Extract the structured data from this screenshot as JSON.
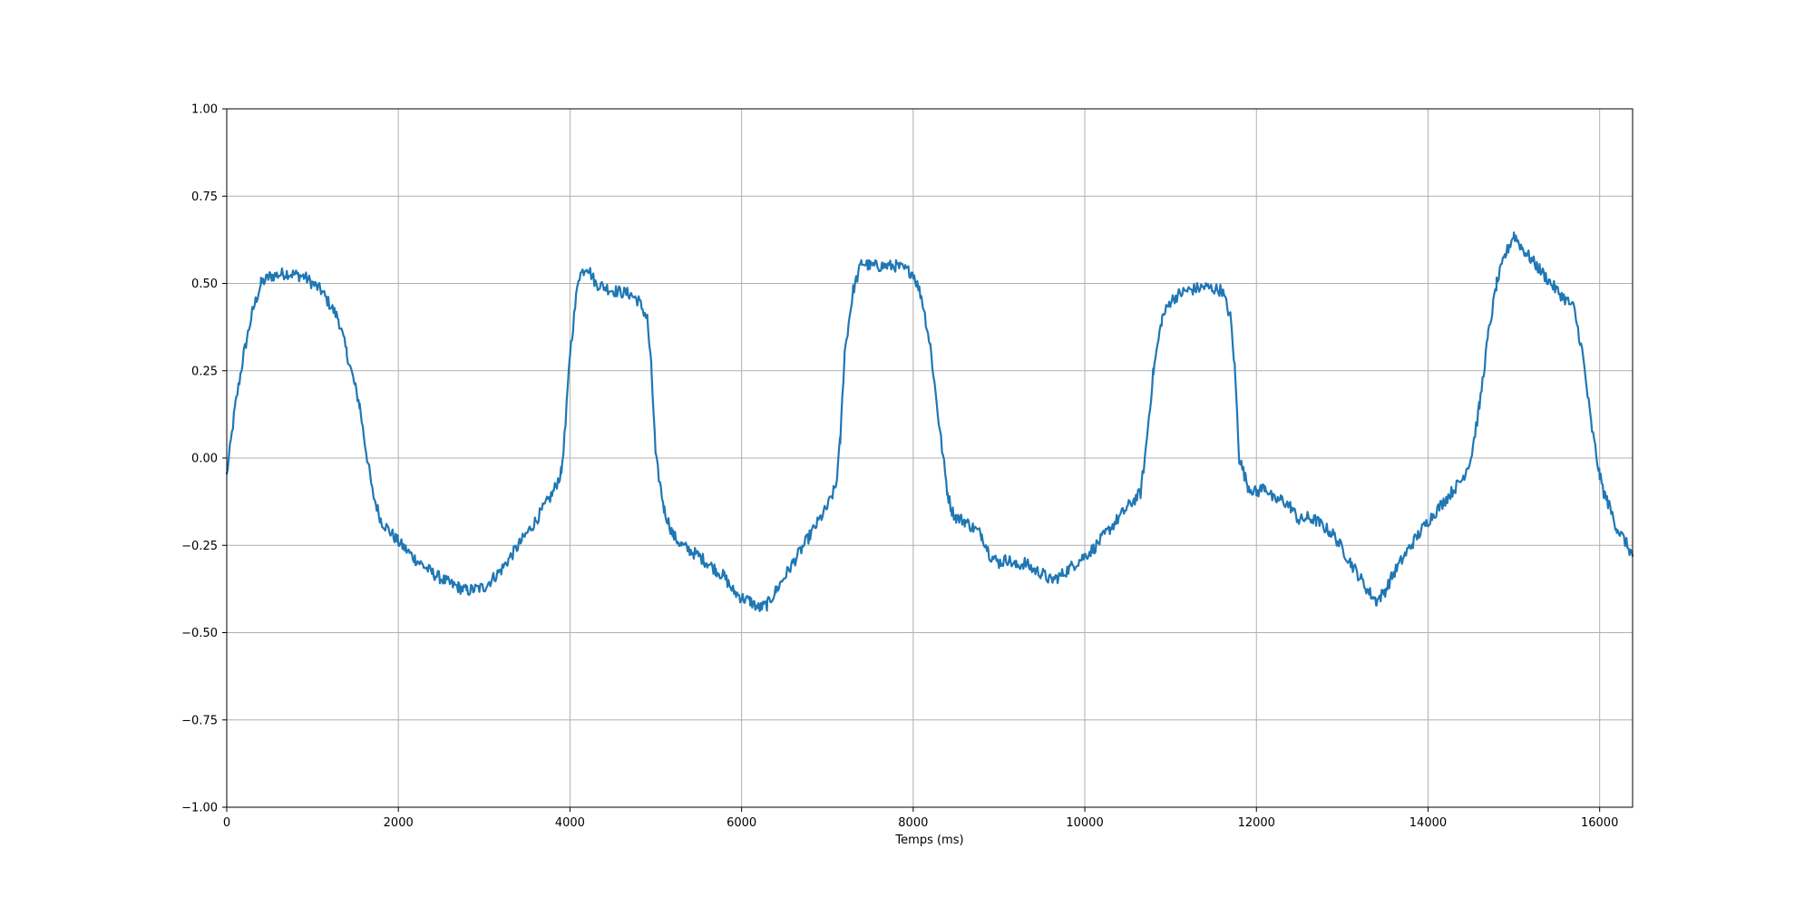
{
  "chart_data": {
    "type": "line",
    "title": "",
    "xlabel": "Temps (ms)",
    "ylabel": "",
    "xlim": [
      0,
      16384
    ],
    "ylim": [
      -1.0,
      1.0
    ],
    "grid": true,
    "legend": "none",
    "xticks": [
      0,
      2000,
      4000,
      6000,
      8000,
      10000,
      12000,
      14000,
      16000
    ],
    "xtick_labels": [
      "0",
      "2000",
      "4000",
      "6000",
      "8000",
      "10000",
      "12000",
      "14000",
      "16000"
    ],
    "yticks": [
      -1.0,
      -0.75,
      -0.5,
      -0.25,
      0.0,
      0.25,
      0.5,
      0.75,
      1.0
    ],
    "ytick_labels": [
      "−1.00",
      "−0.75",
      "−0.50",
      "−0.25",
      "0.00",
      "0.25",
      "0.50",
      "0.75",
      "1.00"
    ],
    "colors": {
      "line": "#1f77b4",
      "grid": "#b0b0b0",
      "axes": "#000000"
    },
    "series": [
      {
        "x": [
          0,
          100,
          200,
          300,
          400,
          500,
          700,
          900,
          1100,
          1300,
          1400,
          1500,
          1550,
          1600,
          1700,
          1800,
          2000,
          2200,
          2400,
          2600,
          2700,
          2800,
          3000,
          3200,
          3400,
          3600,
          3800,
          3900,
          3950,
          4000,
          4100,
          4200,
          4300,
          4500,
          4700,
          4800,
          4900,
          4950,
          5000,
          5100,
          5200,
          5300,
          5500,
          5600,
          5700,
          5800,
          5900,
          6000,
          6100,
          6200,
          6300,
          6400,
          6600,
          6800,
          7000,
          7100,
          7150,
          7200,
          7300,
          7400,
          7500,
          7600,
          7800,
          8000,
          8100,
          8200,
          8300,
          8400,
          8450,
          8500,
          8600,
          8700,
          8800,
          8900,
          9000,
          9100,
          9200,
          9300,
          9400,
          9500,
          9600,
          9700,
          9900,
          10100,
          10300,
          10500,
          10650,
          10700,
          10800,
          10900,
          11000,
          11100,
          11200,
          11400,
          11600,
          11700,
          11750,
          11800,
          11900,
          12000,
          12100,
          12200,
          12300,
          12400,
          12500,
          12600,
          12700,
          12900,
          13100,
          13300,
          13400,
          13500,
          13600,
          13800,
          14000,
          14200,
          14400,
          14500,
          14600,
          14700,
          14800,
          14900,
          15000,
          15100,
          15300,
          15500,
          15700,
          15800,
          15900,
          16000,
          16050,
          16100,
          16200,
          16300,
          16384
        ],
        "y": [
          -0.05,
          0.15,
          0.3,
          0.42,
          0.5,
          0.52,
          0.53,
          0.52,
          0.48,
          0.4,
          0.3,
          0.2,
          0.15,
          0.06,
          -0.1,
          -0.18,
          -0.24,
          -0.29,
          -0.33,
          -0.36,
          -0.37,
          -0.38,
          -0.37,
          -0.32,
          -0.25,
          -0.18,
          -0.1,
          -0.04,
          0.1,
          0.3,
          0.52,
          0.55,
          0.5,
          0.48,
          0.47,
          0.45,
          0.4,
          0.25,
          0.0,
          -0.15,
          -0.22,
          -0.25,
          -0.28,
          -0.3,
          -0.32,
          -0.34,
          -0.38,
          -0.4,
          -0.41,
          -0.43,
          -0.42,
          -0.38,
          -0.3,
          -0.22,
          -0.14,
          -0.08,
          0.05,
          0.3,
          0.48,
          0.56,
          0.55,
          0.55,
          0.55,
          0.53,
          0.46,
          0.32,
          0.1,
          -0.1,
          -0.15,
          -0.17,
          -0.18,
          -0.2,
          -0.22,
          -0.28,
          -0.3,
          -0.29,
          -0.31,
          -0.3,
          -0.32,
          -0.33,
          -0.35,
          -0.34,
          -0.3,
          -0.26,
          -0.2,
          -0.14,
          -0.1,
          0.0,
          0.25,
          0.4,
          0.45,
          0.47,
          0.48,
          0.49,
          0.48,
          0.4,
          0.25,
          0.0,
          -0.08,
          -0.1,
          -0.08,
          -0.12,
          -0.12,
          -0.14,
          -0.18,
          -0.17,
          -0.18,
          -0.22,
          -0.3,
          -0.38,
          -0.41,
          -0.38,
          -0.33,
          -0.25,
          -0.18,
          -0.12,
          -0.06,
          0.0,
          0.15,
          0.35,
          0.5,
          0.58,
          0.64,
          0.6,
          0.54,
          0.48,
          0.43,
          0.3,
          0.1,
          -0.05,
          -0.1,
          -0.13,
          -0.2,
          -0.24,
          -0.28
        ]
      }
    ]
  }
}
